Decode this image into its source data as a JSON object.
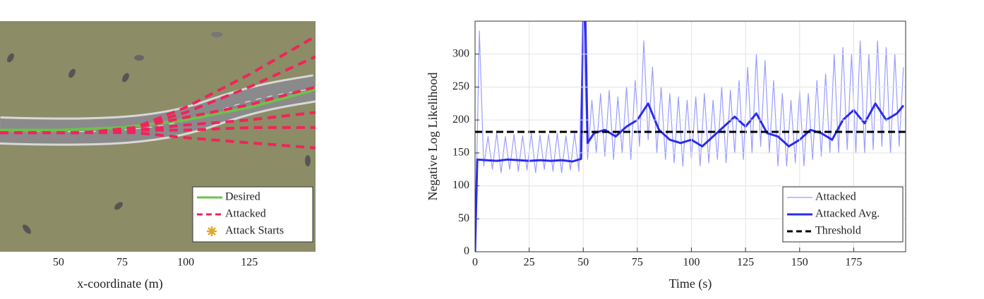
{
  "chart_data": [
    {
      "type": "trajectory",
      "xlabel": "x-coordinate (m)",
      "xlim": [
        27,
        151
      ],
      "ylim": [
        -45,
        46
      ],
      "xticks": [
        50,
        75,
        100,
        125
      ],
      "grid": false,
      "legend": "lower right",
      "series": [
        {
          "name": "Desired",
          "color": "#6cc24a",
          "style": "solid",
          "x": [
            27,
            50,
            75,
            100,
            125,
            151
          ],
          "values": [
            3,
            3,
            4,
            7,
            12,
            19
          ]
        },
        {
          "name": "Attacked",
          "color": "#f0245a",
          "style": "dashed",
          "trajectories": [
            {
              "x": [
                27,
                60,
                80,
                100,
                125,
                151
              ],
              "values": [
                2,
                2,
                4,
                12,
                25,
                40
              ]
            },
            {
              "x": [
                27,
                60,
                80,
                100,
                125,
                151
              ],
              "values": [
                2,
                2,
                4,
                10,
                20,
                32
              ]
            },
            {
              "x": [
                27,
                60,
                80,
                100,
                125,
                151
              ],
              "values": [
                2,
                2,
                4,
                8,
                13,
                20
              ]
            },
            {
              "x": [
                27,
                60,
                80,
                100,
                125,
                151
              ],
              "values": [
                2,
                2,
                3,
                5,
                7,
                10
              ]
            },
            {
              "x": [
                27,
                60,
                80,
                100,
                125,
                151
              ],
              "values": [
                2,
                2,
                3,
                3,
                4,
                4
              ]
            },
            {
              "x": [
                27,
                60,
                80,
                100,
                125,
                151
              ],
              "values": [
                2,
                2,
                2,
                0,
                -2,
                -4
              ]
            }
          ]
        },
        {
          "name": "Attack Starts",
          "color": "#e3a82a",
          "marker": "asterisk"
        }
      ]
    },
    {
      "type": "line",
      "xlabel": "Time (s)",
      "ylabel": "Negative Log Likelihood",
      "xlim": [
        0,
        199
      ],
      "ylim": [
        0,
        350
      ],
      "xticks": [
        0,
        25,
        50,
        75,
        100,
        125,
        150,
        175
      ],
      "yticks": [
        0,
        50,
        100,
        150,
        200,
        250,
        300
      ],
      "grid": true,
      "legend": "lower right",
      "series": [
        {
          "name": "Attacked",
          "color": "#9a9cff",
          "style": "solid",
          "width": 1.2,
          "x": [
            0,
            2,
            4,
            6,
            8,
            10,
            12,
            14,
            16,
            18,
            20,
            22,
            24,
            26,
            28,
            30,
            32,
            34,
            36,
            38,
            40,
            42,
            44,
            46,
            48,
            50,
            52,
            54,
            56,
            58,
            60,
            62,
            64,
            66,
            68,
            70,
            72,
            74,
            76,
            78,
            80,
            82,
            84,
            86,
            88,
            90,
            92,
            94,
            96,
            98,
            100,
            102,
            104,
            106,
            108,
            110,
            112,
            114,
            116,
            118,
            120,
            122,
            124,
            126,
            128,
            130,
            132,
            134,
            136,
            138,
            140,
            142,
            144,
            146,
            148,
            150,
            152,
            154,
            156,
            158,
            160,
            162,
            164,
            166,
            168,
            170,
            172,
            174,
            176,
            178,
            180,
            182,
            184,
            186,
            188,
            190,
            192,
            194,
            196,
            198
          ],
          "values": [
            0,
            335,
            130,
            175,
            125,
            180,
            120,
            175,
            125,
            178,
            122,
            176,
            124,
            180,
            120,
            177,
            125,
            178,
            122,
            180,
            120,
            176,
            124,
            180,
            122,
            350,
            140,
            230,
            150,
            240,
            145,
            245,
            140,
            235,
            150,
            250,
            140,
            260,
            160,
            320,
            170,
            280,
            150,
            250,
            140,
            240,
            135,
            235,
            130,
            230,
            140,
            235,
            130,
            240,
            135,
            230,
            140,
            250,
            135,
            245,
            150,
            260,
            140,
            280,
            150,
            300,
            160,
            290,
            150,
            260,
            130,
            240,
            130,
            230,
            135,
            245,
            130,
            240,
            140,
            260,
            145,
            270,
            150,
            300,
            150,
            310,
            155,
            300,
            150,
            320,
            150,
            300,
            155,
            320,
            160,
            310,
            150,
            300,
            160,
            280
          ]
        },
        {
          "name": "Attacked Avg.",
          "color": "#2b2bf0",
          "style": "solid",
          "width": 3,
          "x": [
            0,
            1,
            5,
            10,
            15,
            20,
            25,
            30,
            35,
            40,
            45,
            49,
            50,
            51,
            52,
            55,
            60,
            65,
            70,
            75,
            80,
            85,
            90,
            95,
            100,
            105,
            110,
            115,
            120,
            125,
            130,
            135,
            140,
            145,
            150,
            155,
            160,
            165,
            170,
            175,
            180,
            185,
            190,
            195,
            198
          ],
          "values": [
            0,
            140,
            139,
            138,
            140,
            139,
            138,
            139,
            138,
            139,
            137,
            141,
            350,
            350,
            165,
            180,
            185,
            175,
            190,
            200,
            225,
            185,
            170,
            165,
            170,
            160,
            175,
            190,
            205,
            190,
            210,
            180,
            175,
            160,
            170,
            185,
            180,
            170,
            200,
            215,
            195,
            225,
            200,
            210,
            222
          ]
        },
        {
          "name": "Threshold",
          "color": "#000000",
          "style": "dashed",
          "width": 3,
          "x": [
            0,
            199
          ],
          "values": [
            182,
            182
          ]
        }
      ]
    }
  ]
}
